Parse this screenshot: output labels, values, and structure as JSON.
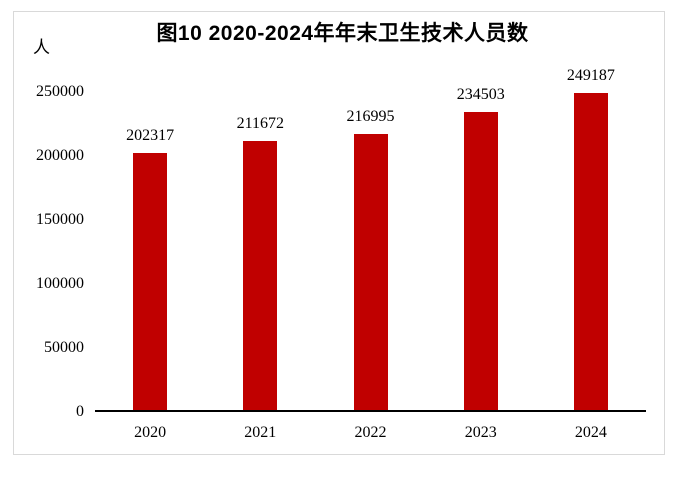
{
  "chart_data": {
    "type": "bar",
    "title": "图10 2020-2024年年末卫生技术人员数",
    "ylabel": "人",
    "xlabel": "",
    "categories": [
      "2020",
      "2021",
      "2022",
      "2023",
      "2024"
    ],
    "values": [
      202317,
      211672,
      216995,
      234503,
      249187
    ],
    "series_name": "年末卫生技术人员数",
    "ylim": [
      0,
      250000
    ],
    "yticks": [
      0,
      50000,
      100000,
      150000,
      200000,
      250000
    ],
    "grid": false,
    "legend": "none",
    "data_labels_visible": true,
    "bar_color": "#C00000"
  },
  "colors": {
    "bar": "#C00000",
    "frame_border": "#D9D9D9",
    "axis_line": "#000000",
    "text": "#000000",
    "background": "#FFFFFF"
  }
}
